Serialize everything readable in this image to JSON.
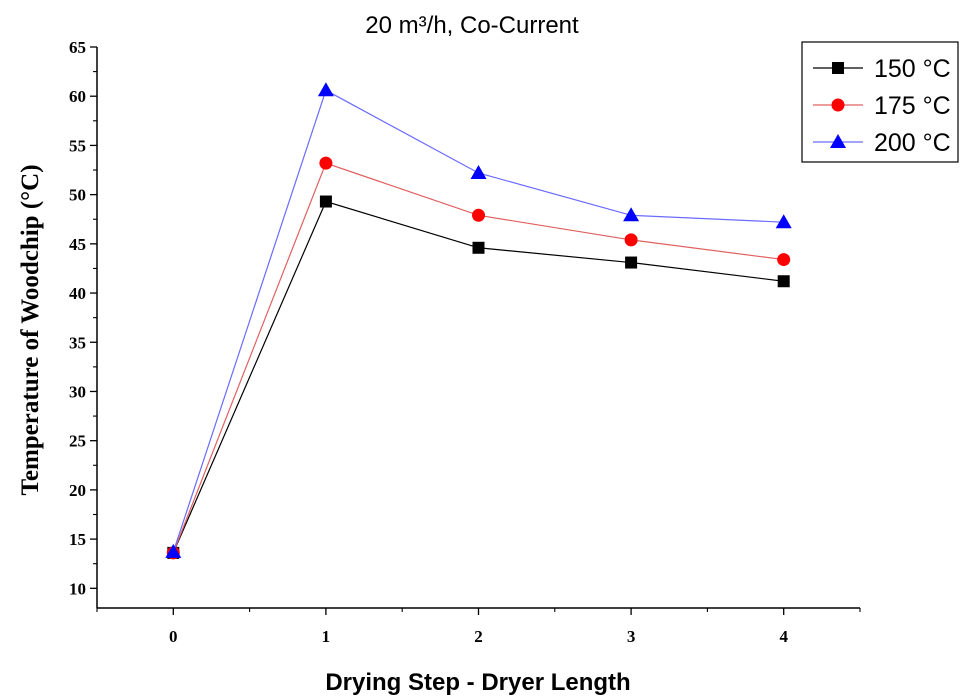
{
  "chart_data": {
    "type": "line",
    "title": "20 m³/h, Co-Current",
    "xlabel": "Drying Step - Dryer Length",
    "ylabel": "Temperature of Woodchip (°C)",
    "x": [
      0,
      1,
      2,
      3,
      4
    ],
    "xlim": [
      -0.5,
      4.5
    ],
    "ylim": [
      8,
      65
    ],
    "xticks": [
      "0",
      "1",
      "2",
      "3",
      "4"
    ],
    "yticks": [
      "10",
      "15",
      "20",
      "25",
      "30",
      "35",
      "40",
      "45",
      "50",
      "55",
      "60",
      "65"
    ],
    "grid": false,
    "legend_position": "top-right",
    "series": [
      {
        "name": "150 °C",
        "marker": "square",
        "color": "#000000",
        "line_color": "#000000",
        "values": [
          13.6,
          49.3,
          44.6,
          43.1,
          41.2
        ]
      },
      {
        "name": "175 °C",
        "marker": "circle",
        "color": "#ff0000",
        "line_color": "#e06060",
        "values": [
          13.6,
          53.2,
          47.9,
          45.4,
          43.4
        ]
      },
      {
        "name": "200 °C",
        "marker": "triangle",
        "color": "#0000ff",
        "line_color": "#6a6aff",
        "values": [
          13.7,
          60.6,
          52.2,
          47.9,
          47.2
        ]
      }
    ]
  }
}
